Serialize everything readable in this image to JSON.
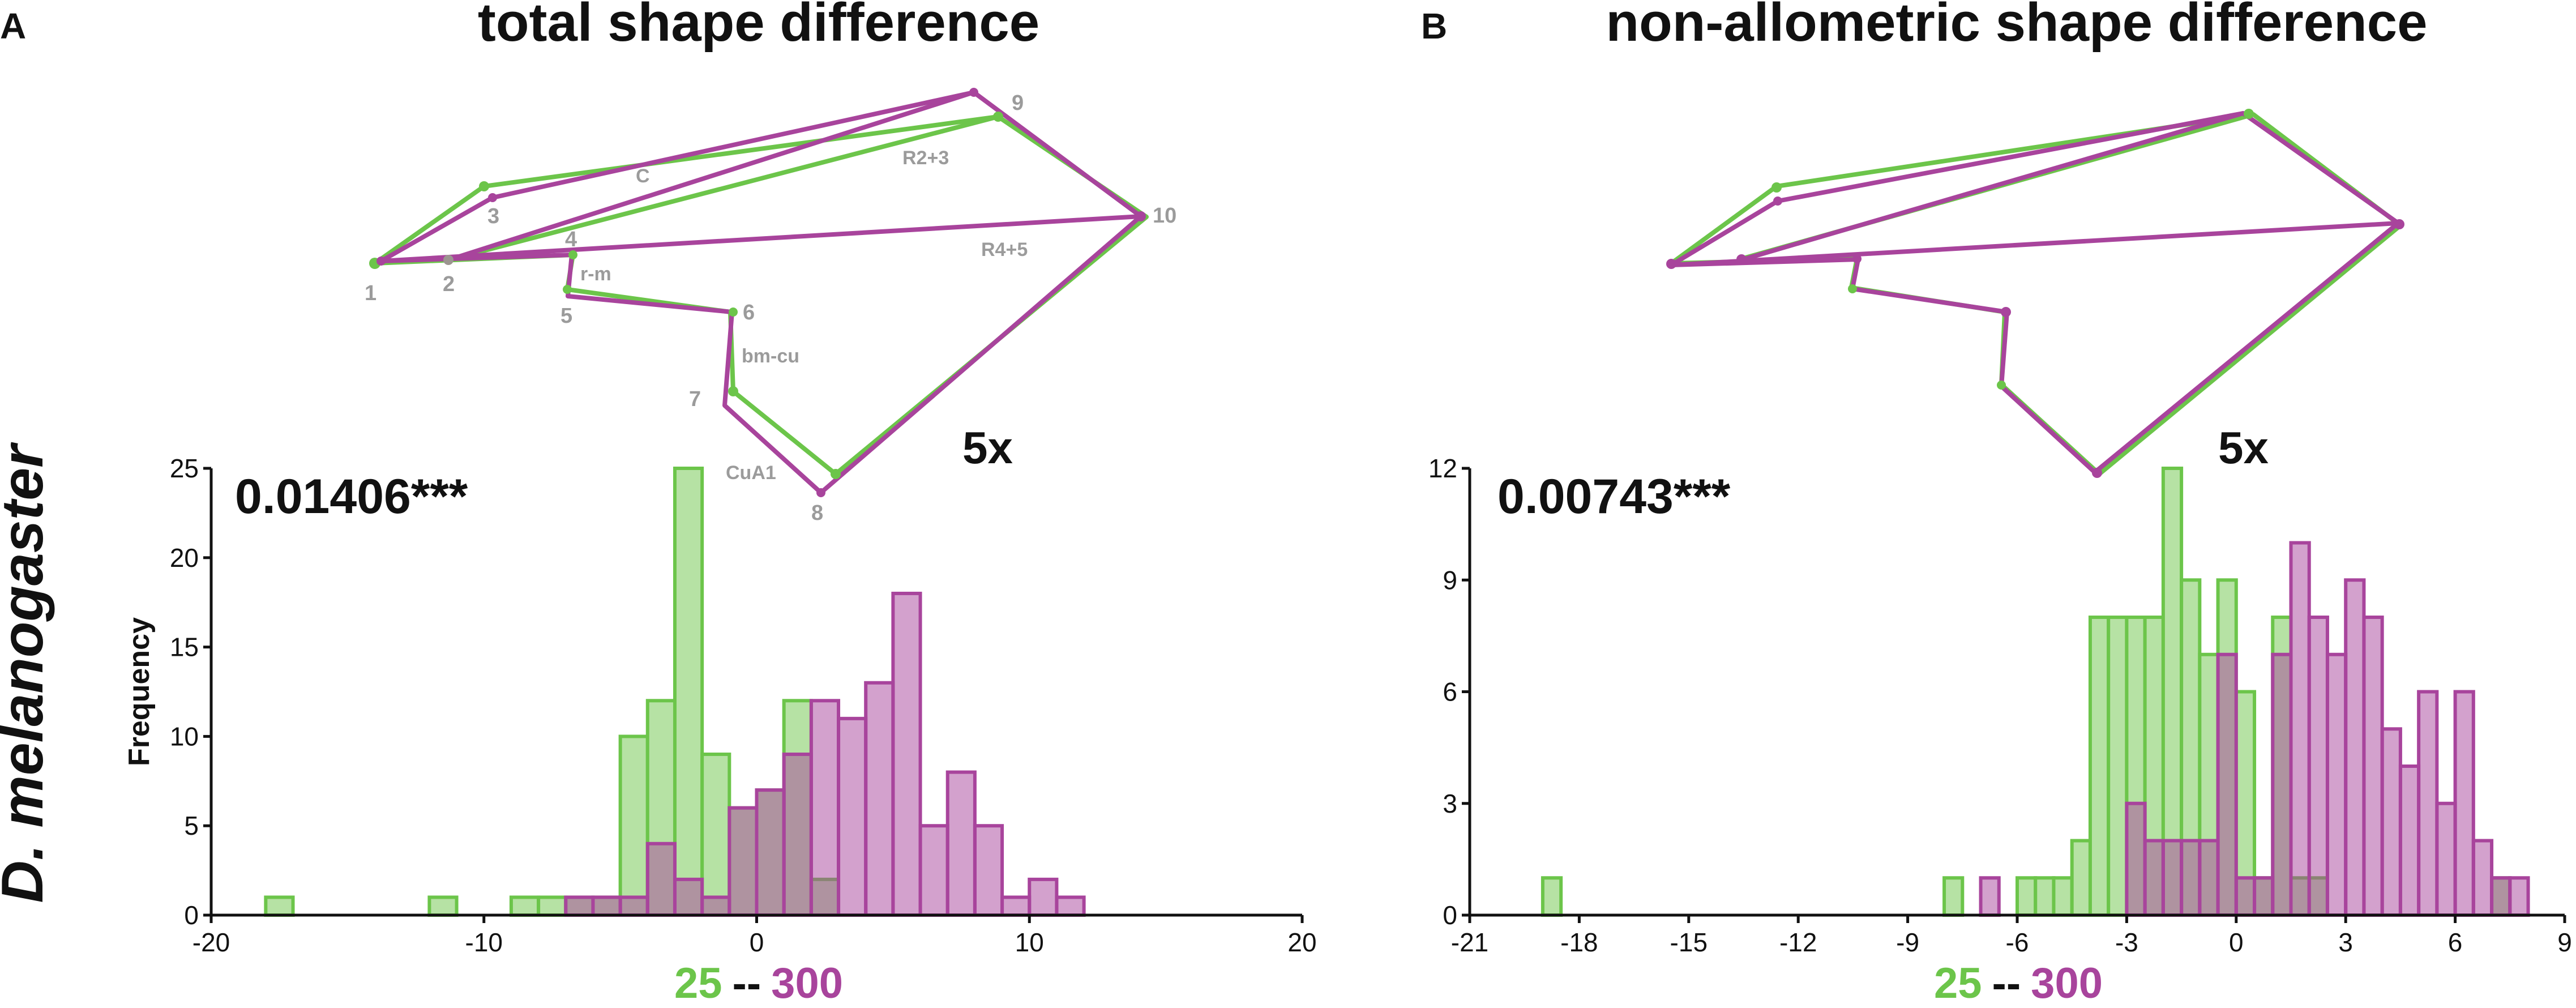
{
  "side_label": "D. melanogaster",
  "colors": {
    "green": "#6cc54a",
    "green_fill": "#b6e2a4",
    "purple": "#a8449c",
    "purple_fill": "#d9a2d2",
    "overlap": "#9c9590",
    "grey_text": "#9b9b9b"
  },
  "panels": [
    {
      "letter": "A",
      "title": "total shape difference",
      "magnification": "5x",
      "wing_labels": {
        "landmarks": [
          "1",
          "2",
          "3",
          "4",
          "5",
          "6",
          "7",
          "8",
          "9",
          "10"
        ],
        "veins": [
          "C",
          "R2+3",
          "R4+5",
          "r-m",
          "bm-cu",
          "CuA1"
        ]
      },
      "stat": "0.01406***",
      "legend": {
        "low": "25",
        "sep": "--",
        "high": "300"
      },
      "chart_data": {
        "type": "bar",
        "ylabel": "Frequency",
        "xlabel": "25 -- 300",
        "xlim": [
          -20,
          20
        ],
        "ylim": [
          0,
          25
        ],
        "xticks": [
          -20,
          -10,
          0,
          10,
          20
        ],
        "yticks": [
          0,
          5,
          10,
          15,
          20,
          25
        ],
        "bin_width": 1,
        "series": [
          {
            "name": "25",
            "bins": [
              [
                -18,
                -17,
                1
              ],
              [
                -12,
                -11,
                1
              ],
              [
                -9,
                -8,
                1
              ],
              [
                -8,
                -7,
                1
              ],
              [
                -7,
                -6,
                1
              ],
              [
                -6,
                -5,
                1
              ],
              [
                -5,
                -4,
                10
              ],
              [
                -4,
                -3,
                12
              ],
              [
                -3,
                -2,
                25
              ],
              [
                -2,
                -1,
                9
              ],
              [
                -1,
                0,
                6
              ],
              [
                0,
                1,
                7
              ],
              [
                1,
                2,
                12
              ],
              [
                2,
                3,
                2
              ]
            ]
          },
          {
            "name": "300",
            "bins": [
              [
                -7,
                -6,
                1
              ],
              [
                -6,
                -5,
                1
              ],
              [
                -5,
                -4,
                1
              ],
              [
                -4,
                -3,
                4
              ],
              [
                -3,
                -2,
                2
              ],
              [
                -2,
                -1,
                1
              ],
              [
                -1,
                0,
                6
              ],
              [
                0,
                1,
                7
              ],
              [
                1,
                2,
                9
              ],
              [
                2,
                3,
                12
              ],
              [
                3,
                4,
                11
              ],
              [
                4,
                5,
                13
              ],
              [
                5,
                6,
                18
              ],
              [
                6,
                7,
                5
              ],
              [
                7,
                8,
                8
              ],
              [
                8,
                9,
                5
              ],
              [
                9,
                10,
                1
              ],
              [
                10,
                11,
                2
              ],
              [
                11,
                12,
                1
              ]
            ]
          }
        ]
      }
    },
    {
      "letter": "B",
      "title": "non-allometric shape difference",
      "magnification": "5x",
      "stat": "0.00743***",
      "legend": {
        "low": "25",
        "sep": "--",
        "high": "300"
      },
      "chart_data": {
        "type": "bar",
        "ylabel": "",
        "xlabel": "25 -- 300",
        "xlim": [
          -21,
          9
        ],
        "ylim": [
          0,
          12
        ],
        "xticks": [
          -21,
          -18,
          -15,
          -12,
          -9,
          -6,
          -3,
          0,
          3,
          6,
          9
        ],
        "yticks": [
          0,
          3,
          6,
          9,
          12
        ],
        "bin_width": 0.5,
        "series": [
          {
            "name": "25",
            "bins": [
              [
                -19,
                -18.5,
                1
              ],
              [
                -8,
                -7.5,
                1
              ],
              [
                -6,
                -5.5,
                1
              ],
              [
                -5.5,
                -5,
                1
              ],
              [
                -5,
                -4.5,
                1
              ],
              [
                -4.5,
                -4,
                2
              ],
              [
                -4,
                -3.5,
                8
              ],
              [
                -3.5,
                -3,
                8
              ],
              [
                -3,
                -2.5,
                8
              ],
              [
                -2.5,
                -2,
                8
              ],
              [
                -2,
                -1.5,
                12
              ],
              [
                -1.5,
                -1,
                9
              ],
              [
                -1,
                -0.5,
                7
              ],
              [
                -0.5,
                0,
                9
              ],
              [
                0,
                0.5,
                6
              ],
              [
                0.5,
                1,
                1
              ],
              [
                1,
                1.5,
                8
              ],
              [
                1.5,
                2,
                1
              ],
              [
                2,
                2.5,
                1
              ],
              [
                7,
                7.5,
                1
              ]
            ]
          },
          {
            "name": "300",
            "bins": [
              [
                -7,
                -6.5,
                1
              ],
              [
                -3,
                -2.5,
                3
              ],
              [
                -2.5,
                -2,
                2
              ],
              [
                -2,
                -1.5,
                2
              ],
              [
                -1.5,
                -1,
                2
              ],
              [
                -1,
                -0.5,
                2
              ],
              [
                -0.5,
                0,
                7
              ],
              [
                0,
                0.5,
                1
              ],
              [
                0.5,
                1,
                1
              ],
              [
                1,
                1.5,
                7
              ],
              [
                1.5,
                2,
                10
              ],
              [
                2,
                2.5,
                8
              ],
              [
                2.5,
                3,
                7
              ],
              [
                3,
                3.5,
                9
              ],
              [
                3.5,
                4,
                8
              ],
              [
                4,
                4.5,
                5
              ],
              [
                4.5,
                5,
                4
              ],
              [
                5,
                5.5,
                6
              ],
              [
                5.5,
                6,
                3
              ],
              [
                6,
                6.5,
                6
              ],
              [
                6.5,
                7,
                2
              ],
              [
                7,
                7.5,
                1
              ],
              [
                7.5,
                8,
                1
              ]
            ]
          }
        ]
      }
    }
  ]
}
